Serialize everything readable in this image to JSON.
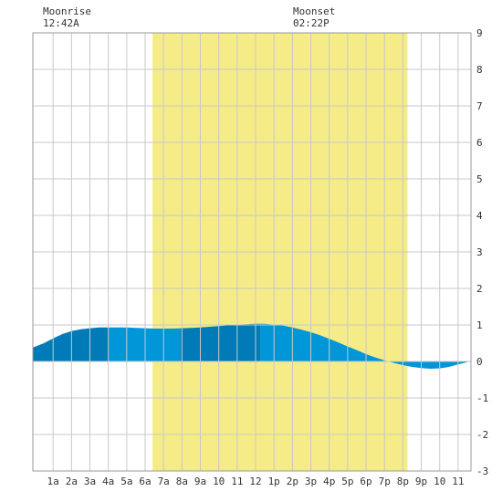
{
  "annotations": {
    "moonrise": {
      "label": "Moonrise",
      "time": "12:42A"
    },
    "moonset": {
      "label": "Moonset",
      "time": "02:22P"
    }
  },
  "colors": {
    "daylight": "#f5ec88",
    "tide_light": "#0096d8",
    "tide_dark": "#007bb8",
    "grid": "#c8c8c8",
    "border": "#999999",
    "label": "#333333"
  },
  "chart_data": {
    "type": "area",
    "x_unit": "hour",
    "xlim": [
      -0.1,
      23.7
    ],
    "ylim": [
      -3,
      9
    ],
    "grid": true,
    "x_tick_labels": [
      {
        "hour": 1,
        "label": "1a"
      },
      {
        "hour": 2,
        "label": "2a"
      },
      {
        "hour": 3,
        "label": "3a"
      },
      {
        "hour": 4,
        "label": "4a"
      },
      {
        "hour": 5,
        "label": "5a"
      },
      {
        "hour": 6,
        "label": "6a"
      },
      {
        "hour": 7,
        "label": "7a"
      },
      {
        "hour": 8,
        "label": "8a"
      },
      {
        "hour": 9,
        "label": "9a"
      },
      {
        "hour": 10,
        "label": "10"
      },
      {
        "hour": 11,
        "label": "11"
      },
      {
        "hour": 12,
        "label": "12"
      },
      {
        "hour": 13,
        "label": "1p"
      },
      {
        "hour": 14,
        "label": "2p"
      },
      {
        "hour": 15,
        "label": "3p"
      },
      {
        "hour": 16,
        "label": "4p"
      },
      {
        "hour": 17,
        "label": "5p"
      },
      {
        "hour": 18,
        "label": "6p"
      },
      {
        "hour": 19,
        "label": "7p"
      },
      {
        "hour": 20,
        "label": "8p"
      },
      {
        "hour": 21,
        "label": "9p"
      },
      {
        "hour": 22,
        "label": "10"
      },
      {
        "hour": 23,
        "label": "11"
      }
    ],
    "y_ticks": [
      -3,
      -2,
      -1,
      0,
      1,
      2,
      3,
      4,
      5,
      6,
      7,
      8,
      9
    ],
    "daylight": {
      "start": 6.4,
      "end": 20.25
    },
    "tide_bands": [
      {
        "from": -0.1,
        "to": 4.0,
        "shade": "dark"
      },
      {
        "from": 4.0,
        "to": 7.9,
        "shade": "light"
      },
      {
        "from": 7.9,
        "to": 12.25,
        "shade": "dark"
      },
      {
        "from": 12.25,
        "to": 23.7,
        "shade": "light"
      }
    ],
    "tide": {
      "x": [
        -0.1,
        0.5,
        1,
        1.5,
        2,
        2.5,
        3,
        3.5,
        4,
        4.5,
        5,
        5.5,
        6,
        6.5,
        7,
        7.5,
        8,
        8.5,
        9,
        9.5,
        10,
        10.5,
        11,
        11.5,
        12,
        12.5,
        13,
        13.5,
        14,
        14.5,
        15,
        15.5,
        16,
        16.5,
        17,
        17.5,
        18,
        18.5,
        19,
        19.5,
        20,
        20.5,
        21,
        21.5,
        22,
        22.5,
        23,
        23.5,
        23.7
      ],
      "y": [
        0.38,
        0.5,
        0.63,
        0.75,
        0.83,
        0.88,
        0.91,
        0.93,
        0.93,
        0.93,
        0.93,
        0.92,
        0.91,
        0.9,
        0.9,
        0.9,
        0.91,
        0.92,
        0.93,
        0.95,
        0.97,
        0.99,
        1.01,
        1.02,
        1.03,
        1.03,
        1.01,
        0.98,
        0.93,
        0.87,
        0.8,
        0.72,
        0.62,
        0.52,
        0.41,
        0.31,
        0.2,
        0.11,
        0.03,
        -0.04,
        -0.1,
        -0.15,
        -0.18,
        -0.2,
        -0.19,
        -0.15,
        -0.08,
        -0.02,
        0
      ]
    }
  }
}
